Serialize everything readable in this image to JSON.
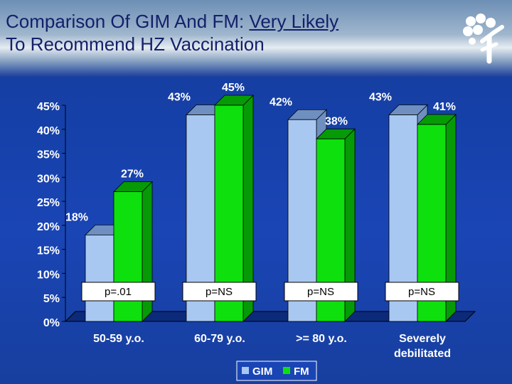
{
  "title": {
    "line1_prefix": "Comparison Of GIM And FM: ",
    "line1_underlined": "Very Likely",
    "line2": "To Recommend HZ Vaccination"
  },
  "colors": {
    "gim": "#a8c8f2",
    "gim_dark": "#6e8fc0",
    "fm": "#0ee00e",
    "fm_dark": "#069a06",
    "label": "#ffffff"
  },
  "chart_data": {
    "type": "bar",
    "title": "Comparison Of GIM And FM: Very Likely To Recommend HZ Vaccination",
    "categories": [
      "50-59 y.o.",
      "60-79 y.o.",
      ">= 80 y.o.",
      "Severely debilitated"
    ],
    "category_lines": [
      [
        "50-59 y.o."
      ],
      [
        "60-79 y.o."
      ],
      [
        ">= 80 y.o."
      ],
      [
        "Severely",
        "debilitated"
      ]
    ],
    "series": [
      {
        "name": "GIM",
        "values": [
          18,
          43,
          42,
          43
        ]
      },
      {
        "name": "FM",
        "values": [
          27,
          45,
          38,
          41
        ]
      }
    ],
    "data_labels": [
      [
        "18%",
        "43%",
        "42%",
        "43%"
      ],
      [
        "27%",
        "45%",
        "38%",
        "41%"
      ]
    ],
    "p_values": [
      "p=.01",
      "p=NS",
      "p=NS",
      "p=NS"
    ],
    "yticks": [
      "0%",
      "5%",
      "10%",
      "15%",
      "20%",
      "25%",
      "30%",
      "35%",
      "40%",
      "45%"
    ],
    "ylim": [
      0,
      45
    ],
    "legend": [
      "GIM",
      "FM"
    ],
    "legend_position": "bottom-center",
    "xlabel": "",
    "ylabel": "",
    "grid": false
  }
}
